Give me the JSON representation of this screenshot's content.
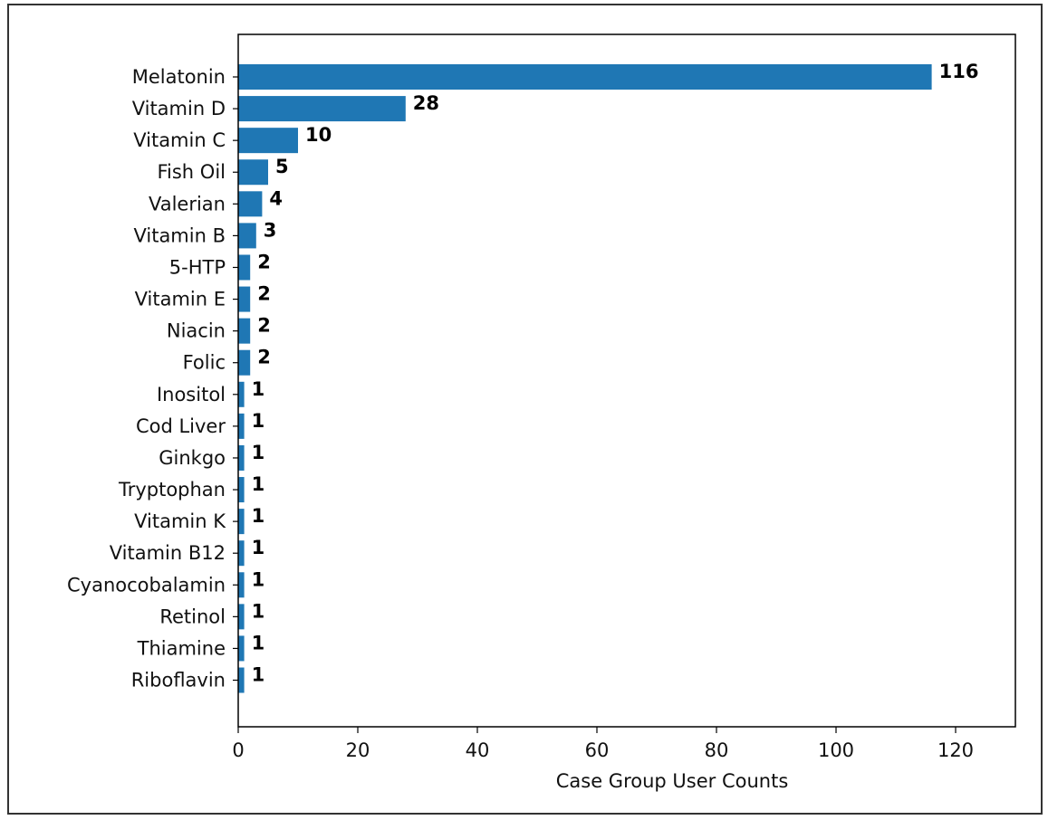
{
  "chart_data": {
    "type": "bar",
    "orientation": "horizontal",
    "categories": [
      "Melatonin",
      "Vitamin D",
      "Vitamin C",
      "Fish Oil",
      "Valerian",
      "Vitamin B",
      "5-HTP",
      "Vitamin E",
      "Niacin",
      "Folic",
      "Inositol",
      "Cod Liver",
      "Ginkgo",
      "Tryptophan",
      "Vitamin K",
      "Vitamin B12",
      "Cyanocobalamin",
      "Retinol",
      "Thiamine",
      "Riboflavin"
    ],
    "values": [
      116,
      28,
      10,
      5,
      4,
      3,
      2,
      2,
      2,
      2,
      1,
      1,
      1,
      1,
      1,
      1,
      1,
      1,
      1,
      1
    ],
    "title": "",
    "xlabel": "Case Group User Counts",
    "ylabel": "",
    "xlim": [
      0,
      130
    ],
    "xticks": [
      0,
      20,
      40,
      60,
      80,
      100,
      120
    ],
    "grid": false,
    "legend": "none",
    "bar_color": "#1f77b4",
    "data_labels": true
  }
}
